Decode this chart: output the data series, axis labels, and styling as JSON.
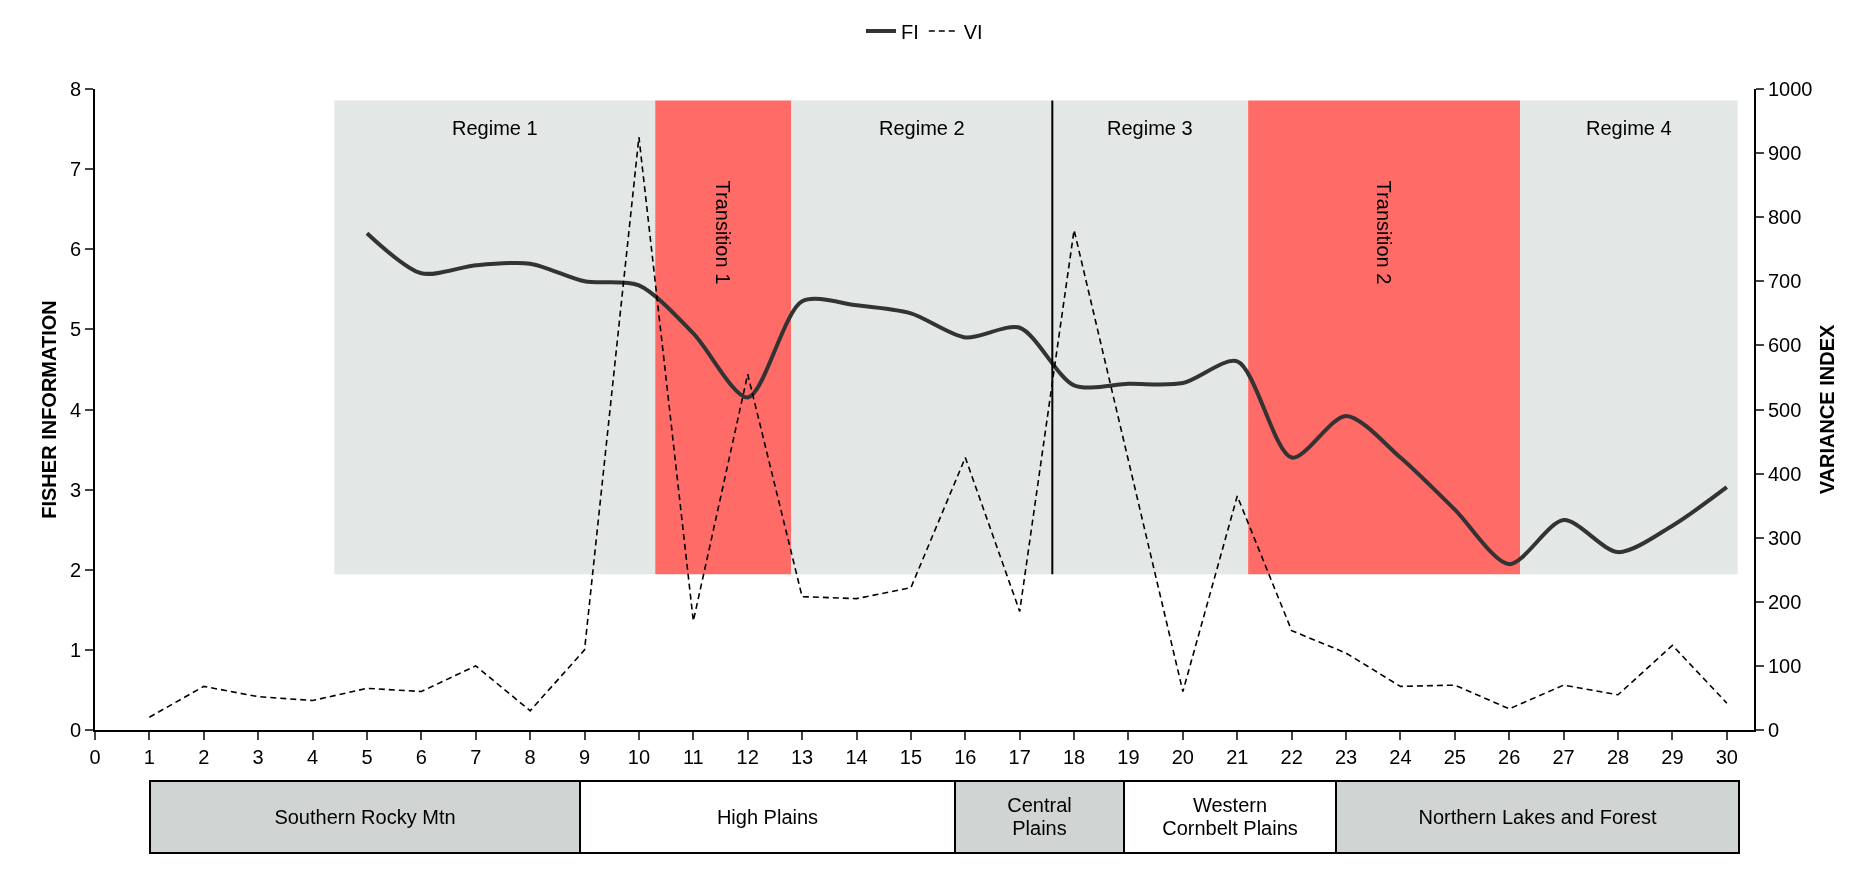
{
  "chart_data": [
    {
      "type": "line",
      "ylabel": "FISHER INFORMATION",
      "y2label": "VARIANCE INDEX",
      "x": [
        1,
        2,
        3,
        4,
        5,
        6,
        7,
        8,
        9,
        10,
        11,
        12,
        13,
        14,
        15,
        16,
        17,
        18,
        19,
        20,
        21,
        22,
        23,
        24,
        25,
        26,
        27,
        28,
        29,
        30
      ],
      "series": [
        {
          "name": "FI",
          "color": "#333333",
          "line_style": "solid",
          "values": [
            null,
            null,
            null,
            null,
            6.2,
            5.7,
            5.8,
            5.82,
            5.6,
            5.55,
            4.95,
            4.15,
            5.35,
            5.3,
            5.2,
            4.9,
            5.02,
            4.3,
            4.32,
            4.33,
            4.6,
            3.4,
            3.92,
            3.4,
            2.75,
            2.07,
            2.62,
            2.22,
            2.55,
            3.03
          ]
        },
        {
          "name": "VI",
          "color": "#000000",
          "line_style": "dashed",
          "axis": "y2",
          "values": [
            20,
            68,
            52,
            46,
            65,
            60,
            100,
            30,
            125,
            925,
            170,
            555,
            208,
            205,
            222,
            425,
            185,
            780,
            420,
            60,
            365,
            155,
            120,
            68,
            70,
            33,
            70,
            55,
            132,
            42
          ]
        }
      ],
      "xlim": [
        0,
        30.5
      ],
      "xticks": [
        0,
        1,
        2,
        3,
        4,
        5,
        6,
        7,
        8,
        9,
        10,
        11,
        12,
        13,
        14,
        15,
        16,
        17,
        18,
        19,
        20,
        21,
        22,
        23,
        24,
        25,
        26,
        27,
        28,
        29,
        30
      ],
      "ylim": [
        0,
        8
      ],
      "yticks": [
        0,
        1,
        2,
        3,
        4,
        5,
        6,
        7,
        8
      ],
      "y2lim": [
        0,
        1000
      ],
      "y2ticks": [
        0,
        100,
        200,
        300,
        400,
        500,
        600,
        700,
        800,
        900,
        1000
      ],
      "grid": false,
      "legend": "top",
      "marker": "none",
      "ref_lines": [
        {
          "axis": "x",
          "value": 17.6,
          "color": "#000000"
        }
      ],
      "bands": [
        {
          "axis": "x",
          "from": 4.4,
          "to": 10.3,
          "label": "Regime 1",
          "color": "#e3e7e6"
        },
        {
          "axis": "x",
          "from": 10.3,
          "to": 12.8,
          "label": "Transition 1",
          "color": "#ff6b66"
        },
        {
          "axis": "x",
          "from": 12.8,
          "to": 17.6,
          "label": "Regime 2",
          "color": "#e3e7e6"
        },
        {
          "axis": "x",
          "from": 17.6,
          "to": 21.2,
          "label": "Regime 3",
          "color": "#e3e7e6"
        },
        {
          "axis": "x",
          "from": 21.2,
          "to": 26.2,
          "label": "Transition 2",
          "color": "#ff6b66"
        },
        {
          "axis": "x",
          "from": 26.2,
          "to": 30.2,
          "label": "Regime 4",
          "color": "#e3e7e6"
        }
      ]
    },
    {
      "type": "other",
      "annotations": [
        "Southern Rocky Mtn",
        "High Plains",
        "Central\nPlains",
        "Western\nCornbelt Plains",
        "Northern Lakes and Forest"
      ]
    }
  ]
}
